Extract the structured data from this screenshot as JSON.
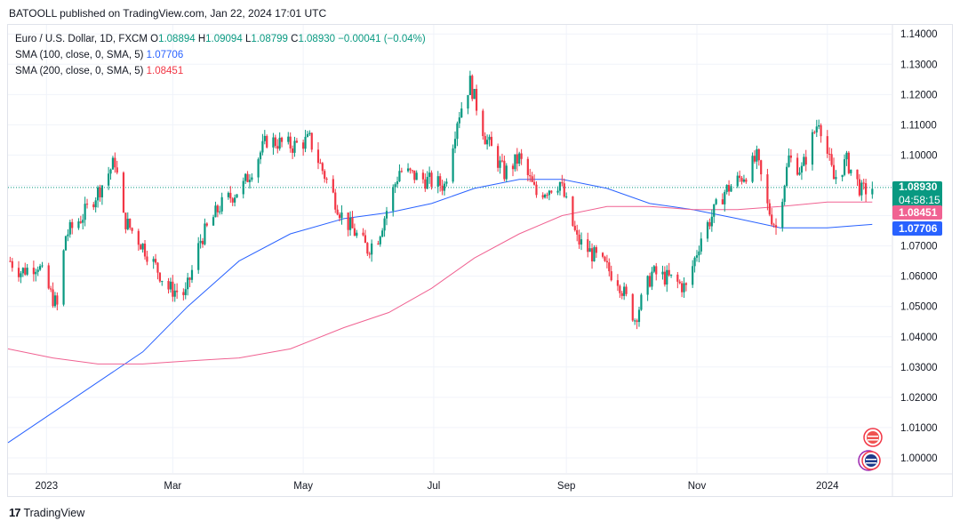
{
  "header": {
    "text": "BATOOLL published on TradingView.com, Jan 22, 2024 17:01 UTC"
  },
  "legend": {
    "symbol": "Euro / U.S. Dollar, 1D, FXCM",
    "o_label": "O",
    "o": "1.08894",
    "h_label": "H",
    "h": "1.09094",
    "l_label": "L",
    "l": "1.08799",
    "c_label": "C",
    "c": "1.08930",
    "change": "−0.00041 (−0.04%)",
    "sma100_label": "SMA (100, close, 0, SMA, 5)",
    "sma100_value": "1.07706",
    "sma200_label": "SMA (200, close, 0, SMA, 5)",
    "sma200_value": "1.08451"
  },
  "price_tags": {
    "last": "1.08930",
    "countdown": "04:58:15",
    "sma200": "1.08451",
    "sma100": "1.07706"
  },
  "footer": {
    "brand": "TradingView",
    "logo_glyph": "17"
  },
  "colors": {
    "up": "#089981",
    "down": "#f23645",
    "sma100": "#2962ff",
    "sma200": "#f06292",
    "grid": "#f0f3fa",
    "axis_text": "#131722"
  },
  "chart_data": {
    "type": "candlestick",
    "title": "Euro / U.S. Dollar, 1D, FXCM",
    "ylim": [
      0.995,
      1.143
    ],
    "y_ticks": [
      "1.14000",
      "1.13000",
      "1.12000",
      "1.11000",
      "1.10000",
      "1.09000",
      "1.08000",
      "1.07000",
      "1.06000",
      "1.05000",
      "1.04000",
      "1.03000",
      "1.02000",
      "1.01000",
      "1.00000"
    ],
    "x_ticks": [
      "2023",
      "Mar",
      "May",
      "Jul",
      "Sep",
      "Nov",
      "2024"
    ],
    "x_tick_dates": [
      "2023-01-01",
      "2023-03-01",
      "2023-05-01",
      "2023-07-01",
      "2023-09-01",
      "2023-11-01",
      "2024-01-01"
    ],
    "x_range": [
      "2022-12-14",
      "2024-01-31"
    ],
    "close_path": [
      [
        "2022-12-15",
        1.065
      ],
      [
        "2022-12-20",
        1.0615
      ],
      [
        "2022-12-28",
        1.064
      ],
      [
        "2023-01-03",
        1.054
      ],
      [
        "2023-01-06",
        1.05
      ],
      [
        "2023-01-10",
        1.0735
      ],
      [
        "2023-01-18",
        1.08
      ],
      [
        "2023-01-26",
        1.089
      ],
      [
        "2023-02-02",
        1.098
      ],
      [
        "2023-02-06",
        1.079
      ],
      [
        "2023-02-15",
        1.07
      ],
      [
        "2023-02-22",
        1.062
      ],
      [
        "2023-02-27",
        1.056
      ],
      [
        "2023-03-07",
        1.054
      ],
      [
        "2023-03-14",
        1.072
      ],
      [
        "2023-03-23",
        1.083
      ],
      [
        "2023-04-03",
        1.09
      ],
      [
        "2023-04-14",
        1.105
      ],
      [
        "2023-04-26",
        1.103
      ],
      [
        "2023-05-04",
        1.105
      ],
      [
        "2023-05-10",
        1.095
      ],
      [
        "2023-05-19",
        1.08
      ],
      [
        "2023-05-31",
        1.069
      ],
      [
        "2023-06-05",
        1.073
      ],
      [
        "2023-06-15",
        1.095
      ],
      [
        "2023-06-26",
        1.092
      ],
      [
        "2023-07-06",
        1.09
      ],
      [
        "2023-07-12",
        1.112
      ],
      [
        "2023-07-18",
        1.124
      ],
      [
        "2023-07-25",
        1.106
      ],
      [
        "2023-08-03",
        1.094
      ],
      [
        "2023-08-10",
        1.099
      ],
      [
        "2023-08-18",
        1.087
      ],
      [
        "2023-08-29",
        1.091
      ],
      [
        "2023-09-06",
        1.072
      ],
      [
        "2023-09-15",
        1.066
      ],
      [
        "2023-09-25",
        1.059
      ],
      [
        "2023-10-03",
        1.046
      ],
      [
        "2023-10-11",
        1.061
      ],
      [
        "2023-10-20",
        1.059
      ],
      [
        "2023-10-27",
        1.056
      ],
      [
        "2023-11-03",
        1.073
      ],
      [
        "2023-11-14",
        1.088
      ],
      [
        "2023-11-24",
        1.094
      ],
      [
        "2023-11-29",
        1.099
      ],
      [
        "2023-12-04",
        1.083
      ],
      [
        "2023-12-08",
        1.076
      ],
      [
        "2023-12-14",
        1.099
      ],
      [
        "2023-12-20",
        1.095
      ],
      [
        "2023-12-28",
        1.112
      ],
      [
        "2024-01-04",
        1.092
      ],
      [
        "2024-01-10",
        1.098
      ],
      [
        "2024-01-17",
        1.088
      ],
      [
        "2024-01-22",
        1.0893
      ]
    ],
    "series": [
      {
        "name": "SMA (100, close, 0, SMA, 5)",
        "points": [
          [
            "2022-12-14",
            1.005
          ],
          [
            "2023-01-04",
            1.015
          ],
          [
            "2023-01-25",
            1.025
          ],
          [
            "2023-02-15",
            1.035
          ],
          [
            "2023-03-08",
            1.05
          ],
          [
            "2023-04-01",
            1.065
          ],
          [
            "2023-04-25",
            1.074
          ],
          [
            "2023-05-20",
            1.079
          ],
          [
            "2023-06-10",
            1.081
          ],
          [
            "2023-06-30",
            1.084
          ],
          [
            "2023-07-20",
            1.089
          ],
          [
            "2023-08-10",
            1.092
          ],
          [
            "2023-08-30",
            1.092
          ],
          [
            "2023-09-20",
            1.089
          ],
          [
            "2023-10-10",
            1.084
          ],
          [
            "2023-10-30",
            1.082
          ],
          [
            "2023-11-20",
            1.079
          ],
          [
            "2023-12-10",
            1.076
          ],
          [
            "2024-01-01",
            1.076
          ],
          [
            "2024-01-22",
            1.0771
          ]
        ]
      },
      {
        "name": "SMA (200, close, 0, SMA, 5)",
        "points": [
          [
            "2022-12-14",
            1.036
          ],
          [
            "2023-01-04",
            1.033
          ],
          [
            "2023-01-25",
            1.031
          ],
          [
            "2023-02-15",
            1.031
          ],
          [
            "2023-03-08",
            1.032
          ],
          [
            "2023-04-01",
            1.033
          ],
          [
            "2023-04-25",
            1.036
          ],
          [
            "2023-05-20",
            1.043
          ],
          [
            "2023-06-10",
            1.048
          ],
          [
            "2023-06-30",
            1.056
          ],
          [
            "2023-07-20",
            1.066
          ],
          [
            "2023-08-10",
            1.074
          ],
          [
            "2023-08-30",
            1.08
          ],
          [
            "2023-09-20",
            1.083
          ],
          [
            "2023-10-10",
            1.083
          ],
          [
            "2023-10-30",
            1.082
          ],
          [
            "2023-11-20",
            1.082
          ],
          [
            "2023-12-10",
            1.083
          ],
          [
            "2024-01-01",
            1.0845
          ],
          [
            "2024-01-22",
            1.0845
          ]
        ]
      }
    ],
    "last_price": 1.0893,
    "grid": true,
    "legend": "top-left"
  }
}
